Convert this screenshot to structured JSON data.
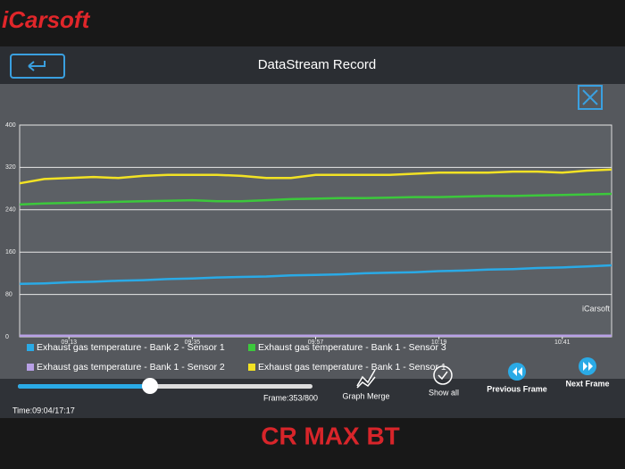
{
  "brand": "iCarsoft",
  "header": {
    "title": "DataStream Record"
  },
  "chart_data": {
    "type": "line",
    "watermark": "iCarsoft",
    "categories": [
      null,
      null,
      "09:13",
      null,
      null,
      null,
      null,
      "09:35",
      null,
      null,
      null,
      null,
      "09:57",
      null,
      null,
      null,
      null,
      "10:19",
      null,
      null,
      null,
      null,
      "10:41",
      null,
      null
    ],
    "ylim": [
      0,
      400
    ],
    "yticks": [
      0,
      80,
      160,
      240,
      320,
      400
    ],
    "grid": true,
    "series": [
      {
        "name": "Exhaust gas temperature - Bank 2 - Sensor 1",
        "color": "#2aaae6",
        "values": [
          100,
          101,
          103,
          104,
          106,
          107,
          109,
          110,
          112,
          113,
          114,
          116,
          117,
          118,
          120,
          121,
          122,
          124,
          125,
          127,
          128,
          130,
          131,
          133,
          135
        ]
      },
      {
        "name": "Exhaust gas temperature - Bank 1 - Sensor 3",
        "color": "#3cc83c",
        "values": [
          250,
          252,
          253,
          254,
          255,
          256,
          257,
          258,
          256,
          256,
          258,
          260,
          261,
          262,
          262,
          263,
          264,
          264,
          265,
          266,
          266,
          267,
          268,
          269,
          270
        ]
      },
      {
        "name": "Exhaust gas temperature - Bank 1 - Sensor 2",
        "color": "#b8a0e6",
        "values": [
          2,
          2,
          2,
          2,
          2,
          2,
          2,
          2,
          2,
          2,
          2,
          2,
          2,
          2,
          2,
          2,
          2,
          2,
          2,
          2,
          2,
          2,
          2,
          2,
          2
        ]
      },
      {
        "name": "Exhaust gas temperature - Bank 1 - Sensor 1",
        "color": "#f2e224",
        "values": [
          290,
          298,
          300,
          302,
          300,
          304,
          306,
          306,
          306,
          304,
          300,
          300,
          306,
          306,
          306,
          306,
          308,
          310,
          310,
          310,
          312,
          312,
          310,
          314,
          316
        ]
      }
    ]
  },
  "controls": {
    "frame": "Frame:353/800",
    "graph_merge": "Graph Merge",
    "show_all": "Show all",
    "previous_frame": "Previous Frame",
    "next_frame": "Next Frame",
    "time": "Time:09:04/17:17"
  },
  "model": "CR MAX BT"
}
